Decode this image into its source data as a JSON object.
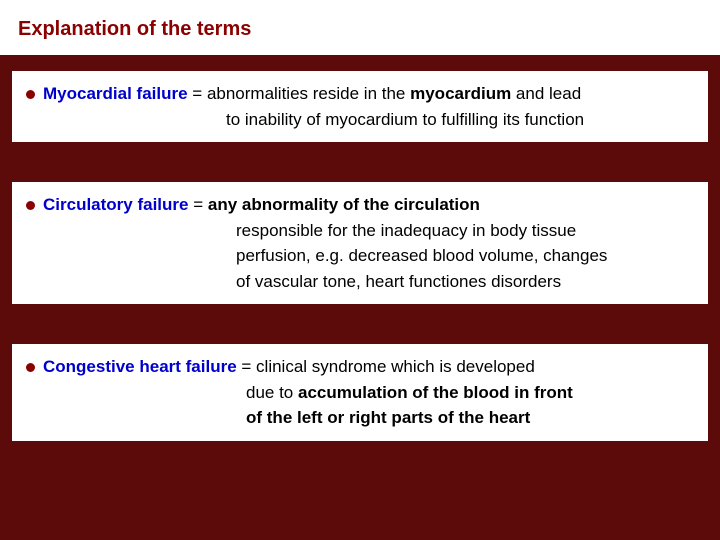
{
  "colors": {
    "background": "#5d0a0a",
    "box_bg": "#ffffff",
    "title_color": "#8b0000",
    "term_color": "#0000cc",
    "bullet_color": "#8b0000",
    "text_color": "#000000"
  },
  "typography": {
    "font_family": "Verdana, Geneva, sans-serif",
    "title_fontsize": 20,
    "body_fontsize": 17,
    "title_weight": "bold",
    "term_weight": "bold"
  },
  "title": "Explanation of the terms",
  "items": [
    {
      "term": "Myocardial failure",
      "equals": " = ",
      "line1_pre": "abnormalities reside in the ",
      "line1_bold": "myocardium",
      "line1_post": " and lead",
      "cont_indent": 200,
      "lines": [
        "to inability of  myocardium to fulfilling its function"
      ]
    },
    {
      "term": "Circulatory failure",
      "equals": " = ",
      "line1_bold": "any abnormality of the circulation",
      "cont_indent": 210,
      "lines": [
        "responsible for the inadequacy in body tissue",
        "perfusion, e.g. decreased blood volume, changes",
        "of vascular tone, heart functiones disorders"
      ]
    },
    {
      "term": "Congestive heart failure",
      "equals": " = ",
      "line1_pre": "clinical syndrome which is developed",
      "cont_indent": 220,
      "cont_lines_rich": [
        {
          "pre": "due to ",
          "bold": "accumulation of the blood in front"
        },
        {
          "bold": " of the left or right parts  of the heart"
        }
      ]
    }
  ]
}
